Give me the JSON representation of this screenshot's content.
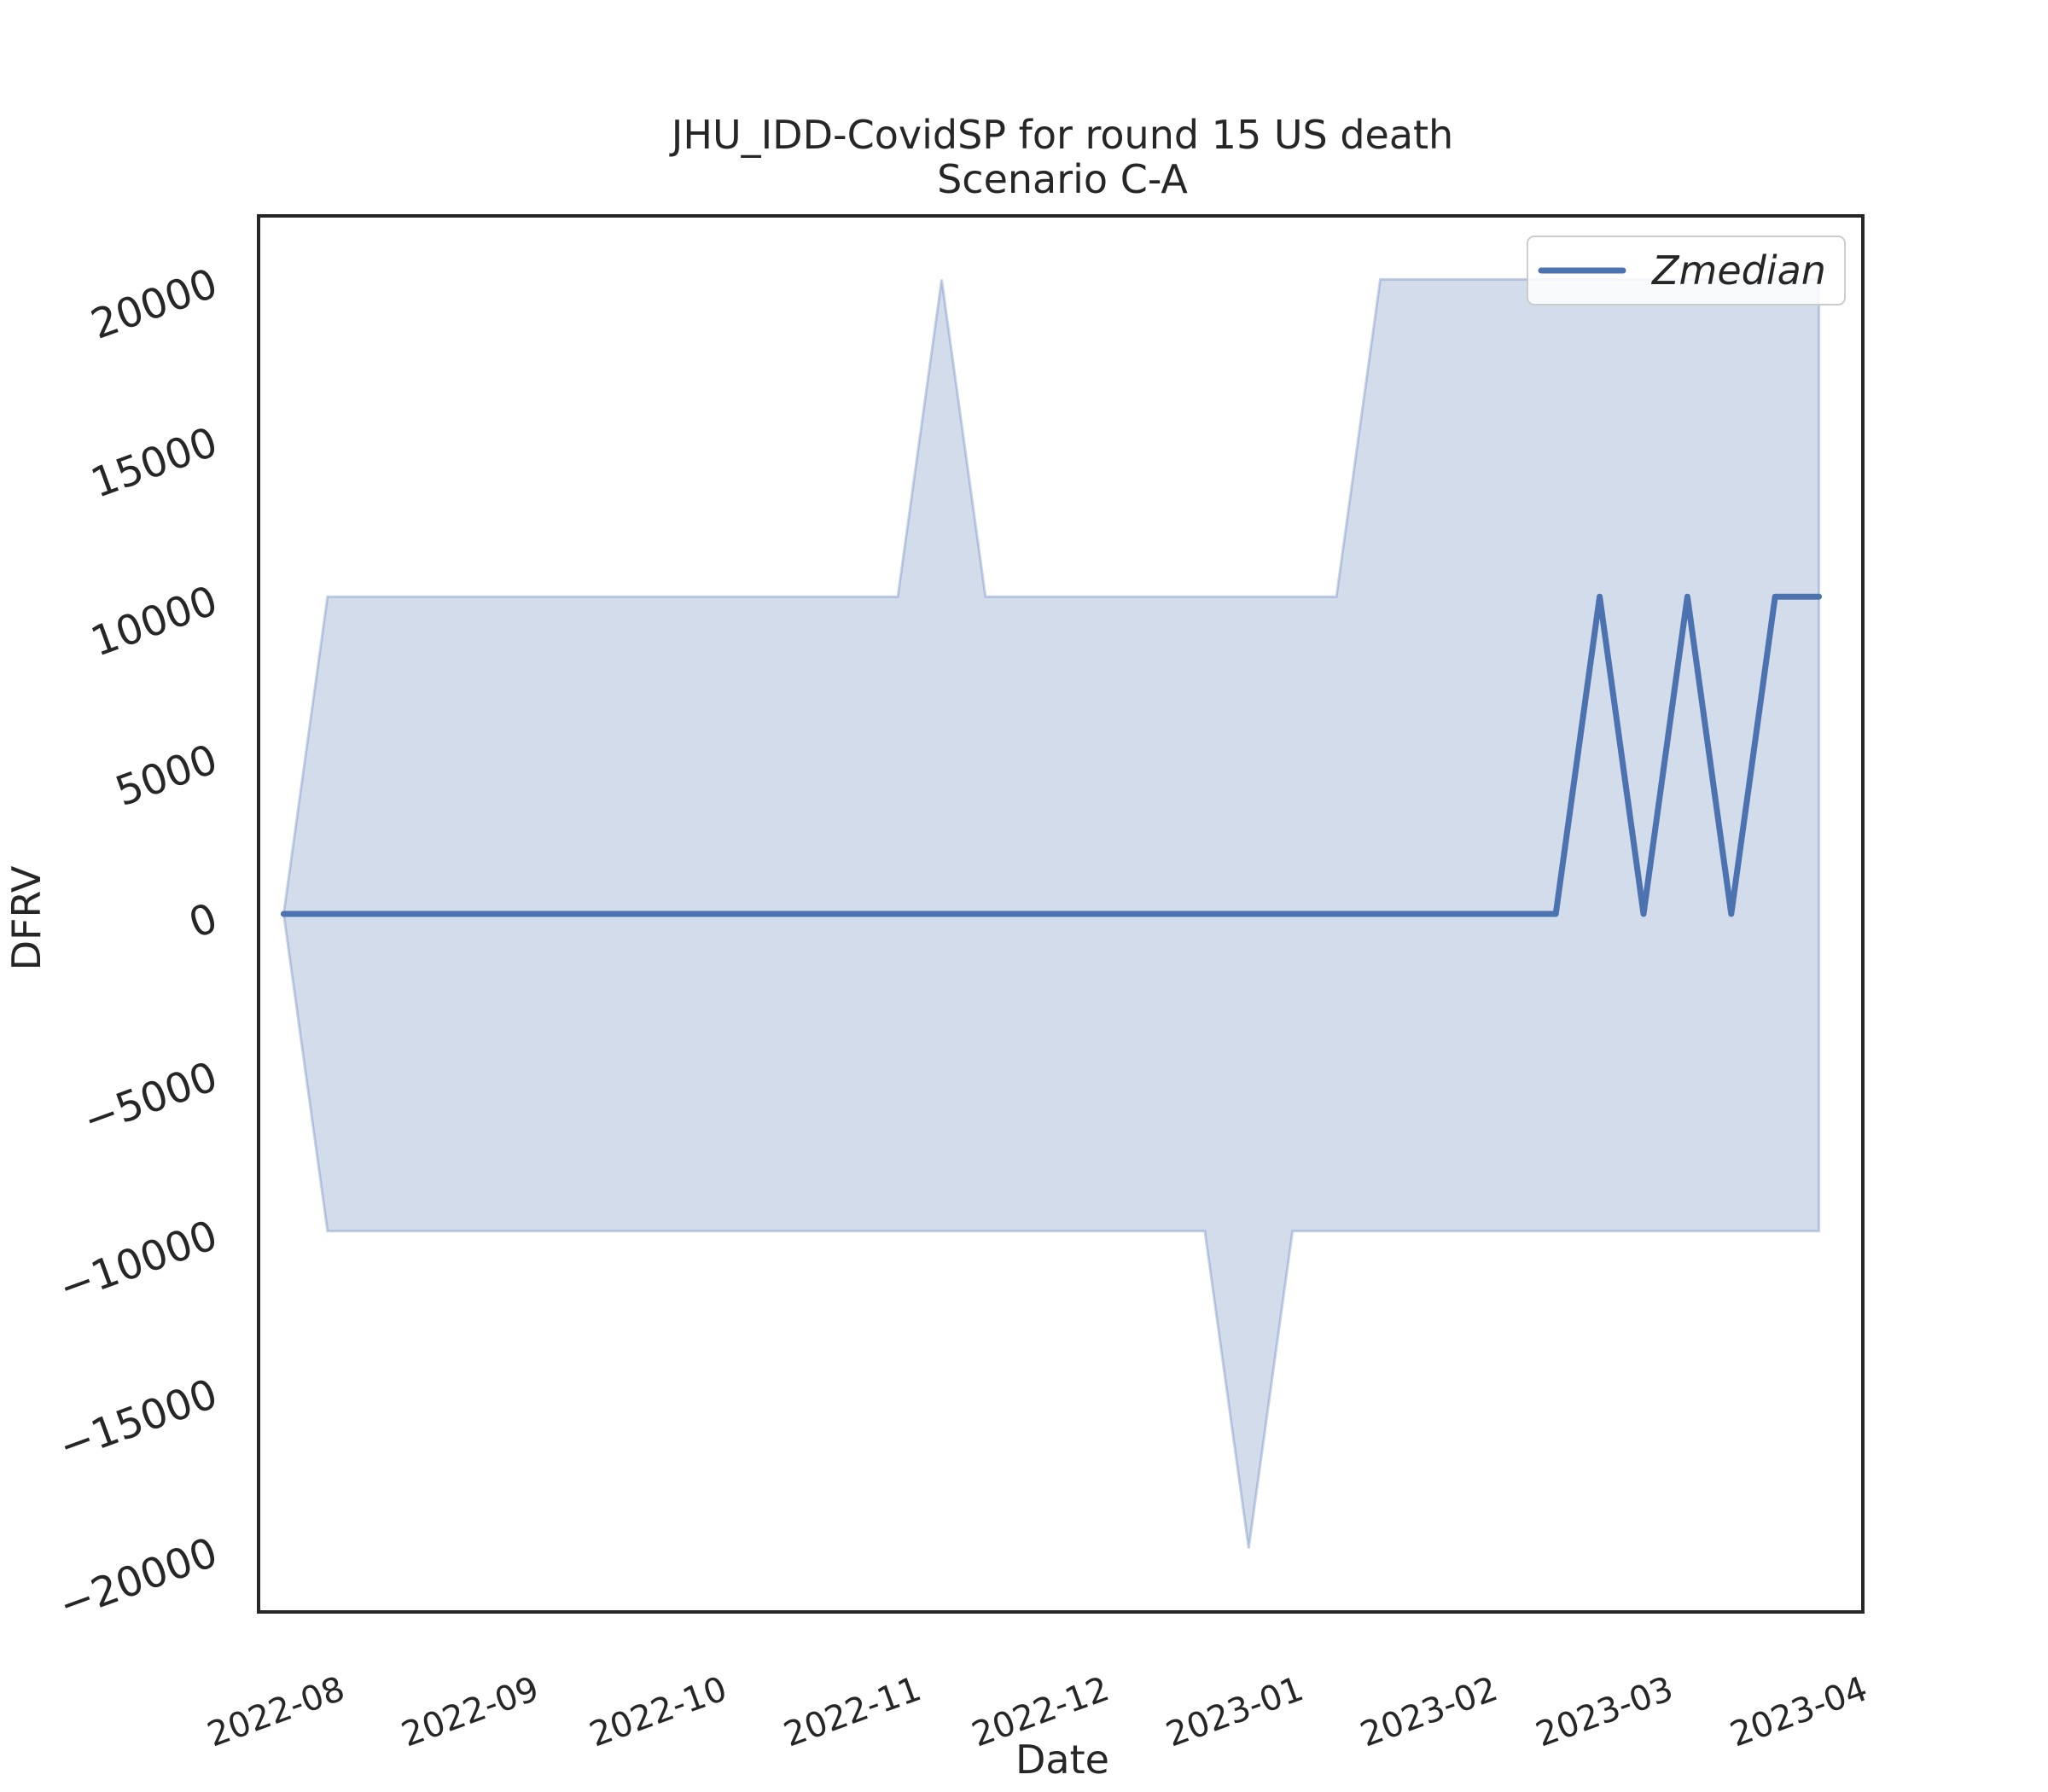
{
  "chart_data": {
    "type": "line",
    "title": "JHU_IDD-CovidSP for round 15 US death",
    "subtitle": "Scenario C-A",
    "xlabel": "Date",
    "ylabel": "DFRV",
    "ylim": [
      -22000,
      22000
    ],
    "xlim": [
      "2022-07-19",
      "2023-04-01"
    ],
    "grid": false,
    "legend_placement": "upper-right",
    "yticks": [
      {
        "value": -20000,
        "label": "−20000"
      },
      {
        "value": -15000,
        "label": "−15000"
      },
      {
        "value": -10000,
        "label": "−10000"
      },
      {
        "value": -5000,
        "label": "−5000"
      },
      {
        "value": 0,
        "label": "0"
      },
      {
        "value": 5000,
        "label": "5000"
      },
      {
        "value": 10000,
        "label": "10000"
      },
      {
        "value": 15000,
        "label": "15000"
      },
      {
        "value": 20000,
        "label": "20000"
      }
    ],
    "xticks": [
      {
        "date": "2022-08-01",
        "label": "2022-08"
      },
      {
        "date": "2022-09-01",
        "label": "2022-09"
      },
      {
        "date": "2022-10-01",
        "label": "2022-10"
      },
      {
        "date": "2022-11-01",
        "label": "2022-11"
      },
      {
        "date": "2022-12-01",
        "label": "2022-12"
      },
      {
        "date": "2023-01-01",
        "label": "2023-01"
      },
      {
        "date": "2023-02-01",
        "label": "2023-02"
      },
      {
        "date": "2023-03-01",
        "label": "2023-03"
      },
      {
        "date": "2023-04-01",
        "label": "2023-04"
      }
    ],
    "x": [
      "2022-07-23",
      "2022-07-30",
      "2022-08-06",
      "2022-08-13",
      "2022-08-20",
      "2022-08-27",
      "2022-09-03",
      "2022-09-10",
      "2022-09-17",
      "2022-09-24",
      "2022-10-01",
      "2022-10-08",
      "2022-10-15",
      "2022-10-22",
      "2022-10-29",
      "2022-11-05",
      "2022-11-12",
      "2022-11-19",
      "2022-11-26",
      "2022-12-03",
      "2022-12-10",
      "2022-12-17",
      "2022-12-24",
      "2022-12-31",
      "2023-01-07",
      "2023-01-14",
      "2023-01-21",
      "2023-01-28",
      "2023-02-04",
      "2023-02-11",
      "2023-02-18",
      "2023-02-25",
      "2023-03-04",
      "2023-03-11",
      "2023-03-18",
      "2023-03-25"
    ],
    "series": [
      {
        "name": "Zmedian",
        "color": "#4c72b0",
        "values": [
          0,
          0,
          0,
          0,
          0,
          0,
          0,
          0,
          0,
          0,
          0,
          0,
          0,
          0,
          0,
          0,
          0,
          0,
          0,
          0,
          0,
          0,
          0,
          0,
          0,
          0,
          0,
          0,
          0,
          0,
          10000,
          0,
          10000,
          0,
          10000,
          10000
        ]
      }
    ],
    "band": {
      "color": "#4c72b0",
      "lower": [
        0,
        -10000,
        -10000,
        -10000,
        -10000,
        -10000,
        -10000,
        -10000,
        -10000,
        -10000,
        -10000,
        -10000,
        -10000,
        -10000,
        -10000,
        -10000,
        -10000,
        -10000,
        -10000,
        -10000,
        -10000,
        -10000,
        -20000,
        -10000,
        -10000,
        -10000,
        -10000,
        -10000,
        -10000,
        -10000,
        -10000,
        -10000,
        -10000,
        -10000,
        -10000,
        -10000
      ],
      "upper": [
        0,
        10000,
        10000,
        10000,
        10000,
        10000,
        10000,
        10000,
        10000,
        10000,
        10000,
        10000,
        10000,
        10000,
        10000,
        20000,
        10000,
        10000,
        10000,
        10000,
        10000,
        10000,
        10000,
        10000,
        10000,
        20000,
        20000,
        20000,
        20000,
        20000,
        20000,
        20000,
        20000,
        20000,
        20000,
        20000
      ]
    }
  }
}
